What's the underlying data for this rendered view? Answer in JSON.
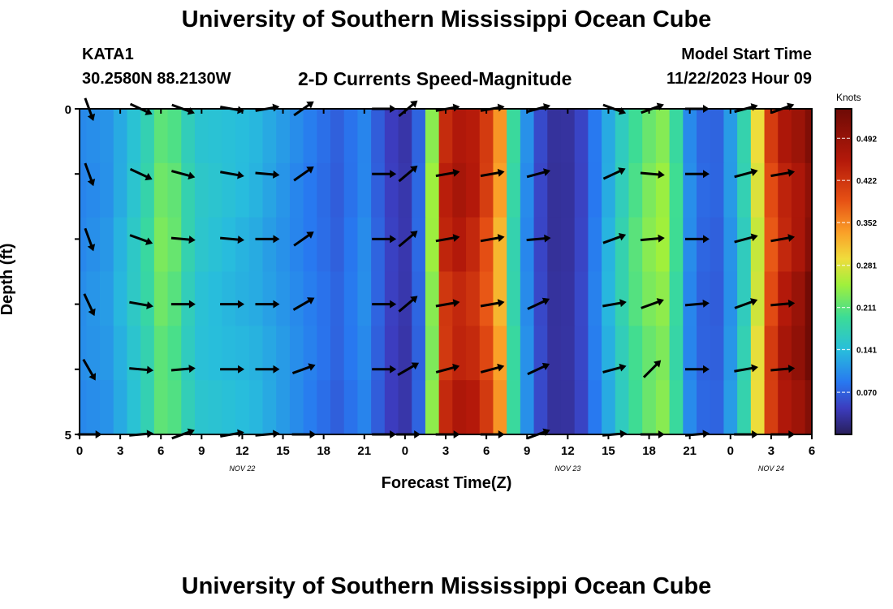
{
  "header": {
    "title": "University of Southern Mississippi Ocean Cube",
    "station": "KATA1",
    "coords": "30.2580N  88.2130W",
    "subtitle": "2-D Currents Speed-Magnitude",
    "start_label": "Model Start Time",
    "start_value": "11/22/2023 Hour 09"
  },
  "footer": {
    "title": "University of Southern Mississippi Ocean Cube"
  },
  "chart_data": {
    "type": "heatmap",
    "xlabel": "Forecast Time(Z)",
    "ylabel": "Depth (ft)",
    "y_ticks": [
      "0",
      "5"
    ],
    "ylim": [
      0,
      5
    ],
    "y_inverted": true,
    "x_ticks": [
      "0",
      "3",
      "6",
      "9",
      "12",
      "15",
      "18",
      "21",
      "0",
      "3",
      "6",
      "9",
      "12",
      "15",
      "18",
      "21",
      "0",
      "3",
      "6"
    ],
    "date_labels": [
      {
        "text": "NOV 22",
        "x_index": 12
      },
      {
        "text": "NOV 23",
        "x_index": 36
      },
      {
        "text": "NOV 24",
        "x_index": 51
      }
    ],
    "x_count": 55,
    "depth_rows": 6,
    "colorbar": {
      "units": "Knots",
      "ticks": [
        "0.070",
        "0.141",
        "0.211",
        "0.281",
        "0.352",
        "0.422",
        "0.492"
      ],
      "tick_values": [
        0.07,
        0.141,
        0.211,
        0.281,
        0.352,
        0.422,
        0.492
      ],
      "range": [
        0.0,
        0.541
      ]
    },
    "speed_profile": [
      {
        "x": 0,
        "v": 0.1
      },
      {
        "x": 2,
        "v": 0.11
      },
      {
        "x": 3.5,
        "v": 0.14
      },
      {
        "x": 5,
        "v": 0.18
      },
      {
        "x": 6,
        "v": 0.22
      },
      {
        "x": 7,
        "v": 0.21
      },
      {
        "x": 8,
        "v": 0.17
      },
      {
        "x": 9,
        "v": 0.15
      },
      {
        "x": 11,
        "v": 0.14
      },
      {
        "x": 13,
        "v": 0.13
      },
      {
        "x": 15,
        "v": 0.11
      },
      {
        "x": 17,
        "v": 0.09
      },
      {
        "x": 19,
        "v": 0.07
      },
      {
        "x": 21,
        "v": 0.1
      },
      {
        "x": 22,
        "v": 0.07
      },
      {
        "x": 23,
        "v": 0.045
      },
      {
        "x": 24.5,
        "v": 0.03
      },
      {
        "x": 25.3,
        "v": 0.1
      },
      {
        "x": 26,
        "v": 0.24
      },
      {
        "x": 26.8,
        "v": 0.42
      },
      {
        "x": 27.5,
        "v": 0.46
      },
      {
        "x": 29,
        "v": 0.44
      },
      {
        "x": 30,
        "v": 0.4
      },
      {
        "x": 31,
        "v": 0.33
      },
      {
        "x": 31.8,
        "v": 0.2
      },
      {
        "x": 32.5,
        "v": 0.14
      },
      {
        "x": 33.3,
        "v": 0.08
      },
      {
        "x": 34.3,
        "v": 0.04
      },
      {
        "x": 35.5,
        "v": 0.02
      },
      {
        "x": 37,
        "v": 0.05
      },
      {
        "x": 38,
        "v": 0.09
      },
      {
        "x": 39,
        "v": 0.13
      },
      {
        "x": 40,
        "v": 0.17
      },
      {
        "x": 41.5,
        "v": 0.22
      },
      {
        "x": 43,
        "v": 0.24
      },
      {
        "x": 44,
        "v": 0.19
      },
      {
        "x": 45,
        "v": 0.1
      },
      {
        "x": 46.5,
        "v": 0.06
      },
      {
        "x": 47.5,
        "v": 0.08
      },
      {
        "x": 48.5,
        "v": 0.14
      },
      {
        "x": 49.5,
        "v": 0.2
      },
      {
        "x": 50.5,
        "v": 0.36
      },
      {
        "x": 51.5,
        "v": 0.44
      },
      {
        "x": 53,
        "v": 0.48
      },
      {
        "x": 54,
        "v": 0.52
      }
    ],
    "arrows": {
      "x_positions": [
        0.7,
        4.5,
        7.6,
        11.2,
        13.8,
        16.5,
        22.4,
        24.2,
        27.1,
        30.4,
        33.8,
        39.4,
        42.2,
        45.5,
        49.1,
        51.8
      ],
      "rows_y": [
        0,
        1,
        2,
        3,
        4,
        5
      ],
      "directions_deg": [
        [
          -70,
          -25,
          -20,
          -10,
          10,
          35,
          0,
          40,
          10,
          10,
          15,
          -20,
          20,
          0,
          15,
          20
        ],
        [
          -70,
          -25,
          -15,
          -10,
          -5,
          35,
          0,
          40,
          10,
          10,
          15,
          25,
          -5,
          0,
          15,
          10
        ],
        [
          -70,
          -20,
          -5,
          -5,
          0,
          35,
          0,
          40,
          10,
          10,
          5,
          20,
          5,
          0,
          15,
          10
        ],
        [
          -65,
          -10,
          0,
          0,
          0,
          30,
          0,
          40,
          10,
          10,
          25,
          10,
          20,
          5,
          20,
          5
        ],
        [
          -60,
          -5,
          5,
          0,
          0,
          20,
          0,
          30,
          15,
          15,
          25,
          15,
          45,
          0,
          10,
          5
        ],
        [
          0,
          5,
          20,
          10,
          5,
          0,
          0,
          0,
          0,
          0,
          20,
          5,
          0,
          5,
          0,
          0
        ]
      ]
    }
  }
}
